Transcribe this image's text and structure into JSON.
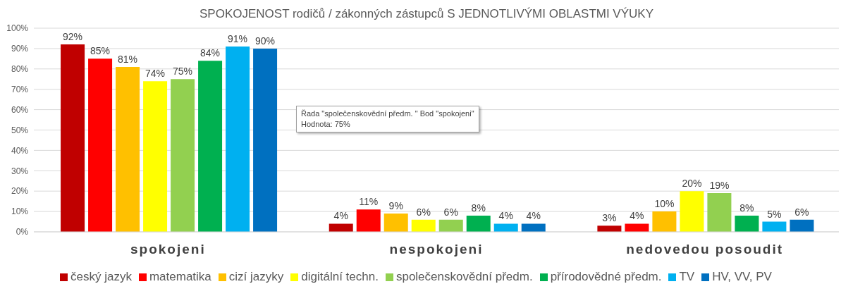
{
  "chart_data": {
    "type": "bar",
    "title": "SPOKOJENOST rodičů / zákonných zástupců S JEDNOTLIVÝMI OBLASTMI VÝUKY",
    "categories": [
      "spokojeni",
      "nespokojeni",
      "nedovedou posoudit"
    ],
    "series": [
      {
        "name": "český jazyk",
        "color": "#c00000",
        "values": [
          92,
          4,
          3
        ],
        "value_labels": [
          "92%",
          "4%",
          "3%"
        ]
      },
      {
        "name": "matematika",
        "color": "#ff0000",
        "values": [
          85,
          11,
          4
        ],
        "value_labels": [
          "85%",
          "11%",
          "4%"
        ]
      },
      {
        "name": "cizí jazyky",
        "color": "#ffc000",
        "values": [
          81,
          9,
          10
        ],
        "value_labels": [
          "81%",
          "9%",
          "10%"
        ]
      },
      {
        "name": "digitální techn.",
        "color": "#ffff00",
        "values": [
          74,
          6,
          20
        ],
        "value_labels": [
          "74%",
          "6%",
          "20%"
        ]
      },
      {
        "name": "společenskovědní předm.",
        "color": "#92d050",
        "values": [
          75,
          6,
          19
        ],
        "value_labels": [
          "75%",
          "6%",
          "19%"
        ]
      },
      {
        "name": "přírodovědné předm.",
        "color": "#00b050",
        "values": [
          84,
          8,
          8
        ],
        "value_labels": [
          "84%",
          "8%",
          "8%"
        ]
      },
      {
        "name": "TV",
        "color": "#00b0f0",
        "values": [
          91,
          4,
          5
        ],
        "value_labels": [
          "91%",
          "4%",
          "5%"
        ]
      },
      {
        "name": "HV, VV, PV",
        "color": "#0070c0",
        "values": [
          90,
          4,
          6
        ],
        "value_labels": [
          "90%",
          "4%",
          "6%"
        ]
      }
    ],
    "ylim": [
      0,
      100
    ],
    "yticks": [
      {
        "value": 0,
        "label": "0%"
      },
      {
        "value": 10,
        "label": "10%"
      },
      {
        "value": 20,
        "label": "20%"
      },
      {
        "value": 30,
        "label": "30%"
      },
      {
        "value": 40,
        "label": "40%"
      },
      {
        "value": 50,
        "label": "50%"
      },
      {
        "value": 60,
        "label": "60%"
      },
      {
        "value": 70,
        "label": "70%"
      },
      {
        "value": 80,
        "label": "80%"
      },
      {
        "value": 90,
        "label": "90%"
      },
      {
        "value": 100,
        "label": "100%"
      }
    ],
    "grid": "y",
    "legend": "bottom",
    "annotations": [
      "Řada \"společenskovědní předm. \" Bod \"spokojeni\"",
      "Hodnota: 75%"
    ]
  }
}
